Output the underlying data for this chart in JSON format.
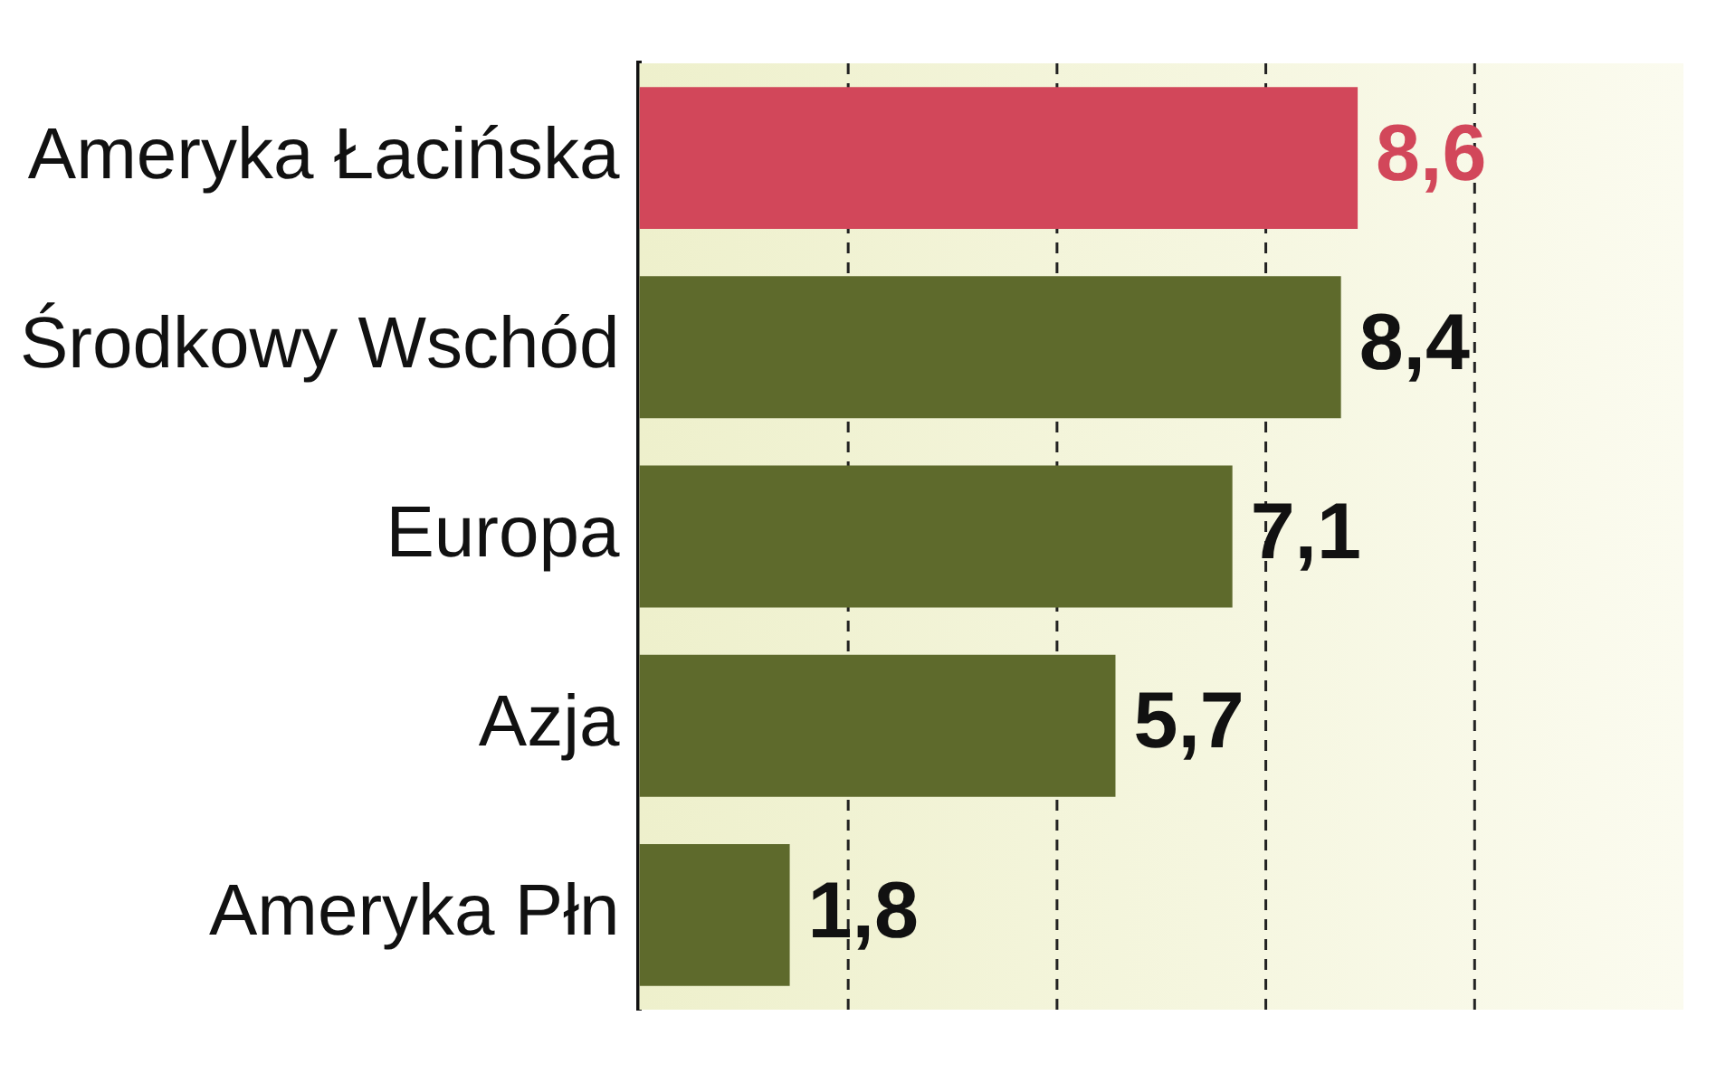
{
  "chart_data": {
    "type": "bar",
    "orientation": "horizontal",
    "categories": [
      "Ameryka Łacińska",
      "Środkowy Wschód",
      "Europa",
      "Azja",
      "Ameryka Płn"
    ],
    "values": [
      8.6,
      8.4,
      7.1,
      5.7,
      1.8
    ],
    "colors": [
      "#d2475a",
      "#5e6a2c",
      "#5e6a2c",
      "#5e6a2c",
      "#5e6a2c"
    ],
    "value_labels": [
      "8,6",
      "8,4",
      "7,1",
      "5,7",
      "1,8"
    ],
    "xlim": [
      0,
      12.5
    ],
    "xticks": [
      {
        "value": 2.5,
        "label": null
      },
      {
        "value": 5,
        "label": null
      },
      {
        "value": 7.5,
        "label": null
      },
      {
        "value": 10,
        "label": null
      }
    ],
    "grid": "x",
    "tick_labels": "y",
    "legend": false
  }
}
